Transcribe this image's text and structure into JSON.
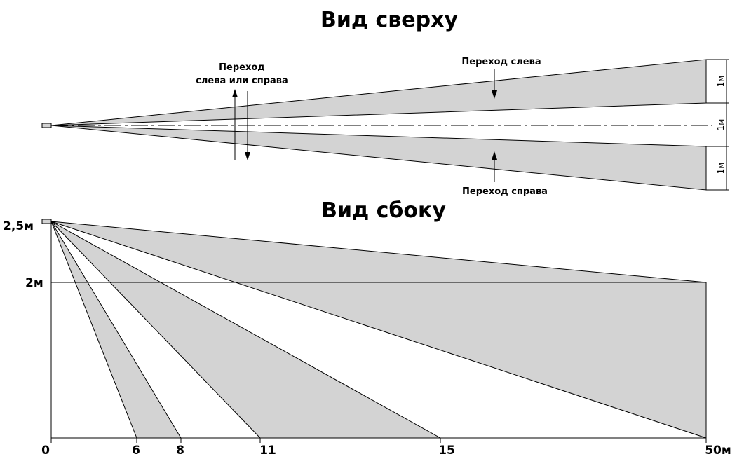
{
  "top_view": {
    "title": "Вид сверху",
    "label_left_or_right": [
      "Переход",
      "слева или справа"
    ],
    "label_left": "Переход слева",
    "label_right": "Переход справа",
    "dimensions": [
      "1м",
      "1м",
      "1м"
    ]
  },
  "side_view": {
    "title": "Вид сбоку",
    "y_labels": [
      "2,5м",
      "2м"
    ],
    "x_labels": [
      "0",
      "6",
      "8",
      "11",
      "15",
      "50м"
    ]
  }
}
